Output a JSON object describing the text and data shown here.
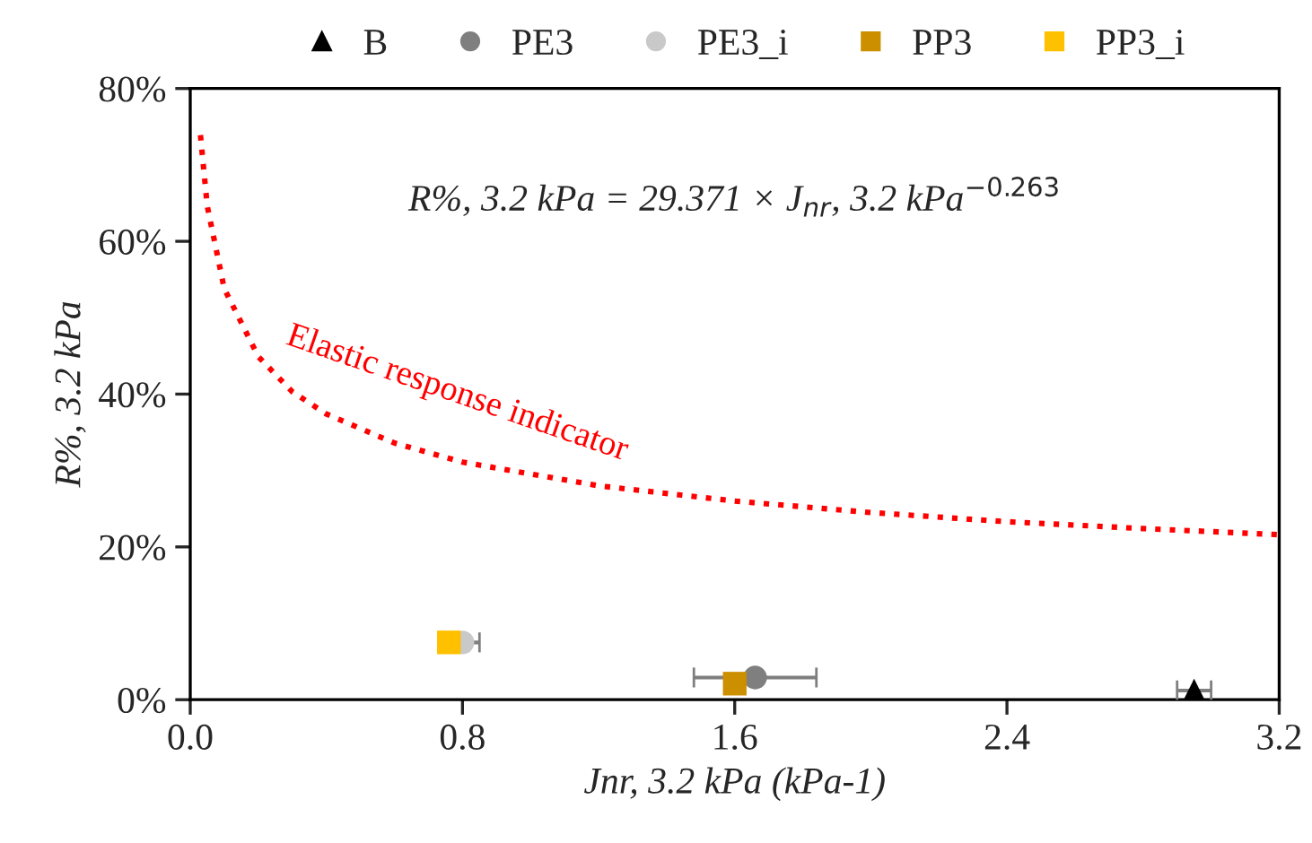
{
  "chart_data": {
    "type": "scatter",
    "xlabel": "Jnr, 3.2 kPa (kPa-1)",
    "ylabel": "R%, 3.2 kPa",
    "xlim": [
      0,
      3.2
    ],
    "xticks": [
      {
        "value": 0,
        "label": "0.0"
      },
      0.8,
      1.6,
      2.4,
      3.2
    ],
    "ylim": [
      0,
      80
    ],
    "yticks": [
      {
        "value": 0,
        "label": "0%"
      },
      {
        "value": 20,
        "label": "20%"
      },
      {
        "value": 40,
        "label": "40%"
      },
      {
        "value": 60,
        "label": "60%"
      },
      {
        "value": 80,
        "label": "80%"
      }
    ],
    "grid": false,
    "legend": "top",
    "annotations": [
      "R%, 3.2 kPa = 29.371 × J$_{nr}$, 3.2 kPa$^{−0.263}$",
      "Elastic response indicator"
    ],
    "series": [
      {
        "type": "line",
        "color": "#ff0000",
        "line_style": "dotted",
        "marker": "none",
        "x": [
          0.03,
          0.05,
          0.1,
          0.2,
          0.3,
          0.4,
          0.6,
          0.8,
          1.2,
          1.6,
          2.0,
          2.4,
          2.8,
          3.2
        ],
        "values": [
          73.9,
          64.6,
          53.8,
          44.9,
          40.3,
          37.4,
          33.6,
          31.1,
          28.0,
          26.0,
          24.5,
          23.3,
          22.4,
          21.6
        ]
      },
      {
        "name": "B",
        "color": "#000000",
        "marker": "triangle",
        "x": [
          2.95
        ],
        "values": [
          1.2
        ],
        "xerrors": [
          0.05
        ]
      },
      {
        "name": "PE3",
        "color": "#7f7f7f",
        "marker": "circle",
        "x": [
          1.66
        ],
        "values": [
          2.9
        ],
        "xerrors": [
          0.18
        ]
      },
      {
        "name": "PE3_i",
        "color": "#c9c9c9",
        "marker": "circle",
        "x": [
          0.8
        ],
        "values": [
          7.5
        ],
        "xerrors": [
          0.05
        ]
      },
      {
        "name": "PP3",
        "color": "#cc8f00",
        "marker": "square",
        "x": [
          1.6
        ],
        "values": [
          2.1
        ]
      },
      {
        "name": "PP3_i",
        "color": "#ffc000",
        "marker": "square",
        "x": [
          0.76
        ],
        "values": [
          7.5
        ]
      }
    ]
  }
}
